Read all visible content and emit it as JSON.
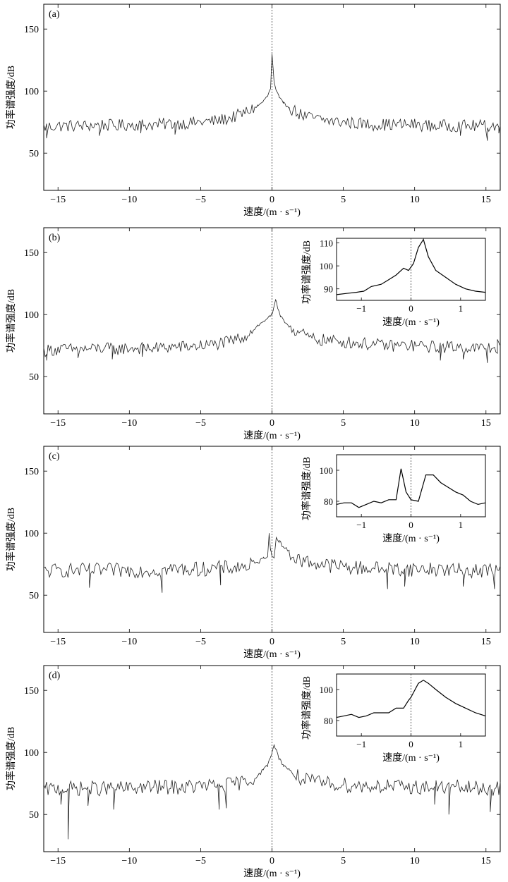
{
  "chart_data": [
    {
      "type": "line",
      "panel_label": "(a)",
      "xlabel": "速度/(m · s⁻¹)",
      "ylabel": "功率谱强度/dB",
      "xlim": [
        -16,
        16
      ],
      "ylim": [
        20,
        170
      ],
      "x_ticks": [
        -15,
        -10,
        -5,
        0,
        5,
        10,
        15
      ],
      "y_ticks": [
        50,
        100,
        150
      ],
      "x_tick_labels": [
        "−15",
        "−10",
        "−5",
        "0",
        "5",
        "10",
        "15"
      ],
      "y_tick_labels": [
        "50",
        "100",
        "150"
      ],
      "zero_line": true,
      "grid": false,
      "series": [
        {
          "x": [
            -16,
            -15,
            -14,
            -13,
            -12,
            -11,
            -10,
            -9,
            -8,
            -7,
            -6,
            -5,
            -4,
            -3,
            -2.5,
            -2,
            -1.5,
            -1,
            -0.6,
            -0.3,
            -0.1,
            0,
            0.15,
            0.3,
            0.5,
            0.8,
            1.2,
            1.6,
            2,
            2.5,
            3,
            4,
            5,
            6,
            7,
            8,
            9,
            10,
            11,
            12,
            13,
            14,
            15,
            16
          ],
          "y": [
            71,
            72,
            72,
            72,
            73,
            72,
            73,
            73,
            73,
            74,
            74,
            75,
            76,
            78,
            80,
            82,
            85,
            88,
            92,
            96,
            102,
            130,
            107,
            100,
            95,
            90,
            87,
            84,
            81,
            79,
            78,
            76,
            75,
            74,
            73,
            73,
            73,
            73,
            72,
            72,
            72,
            72,
            72,
            72
          ],
          "noise": 5,
          "dips": [
            [
              -15.8,
              62
            ],
            [
              -12.1,
              64
            ],
            [
              -9.2,
              66
            ],
            [
              -6.8,
              65
            ],
            [
              13.2,
              64
            ],
            [
              15.1,
              60
            ],
            [
              15.9,
              66
            ]
          ]
        }
      ]
    },
    {
      "type": "line",
      "panel_label": "(b)",
      "xlabel": "速度/(m · s⁻¹)",
      "ylabel": "功率谱强度/dB",
      "xlim": [
        -16,
        16
      ],
      "ylim": [
        20,
        170
      ],
      "x_ticks": [
        -15,
        -10,
        -5,
        0,
        5,
        10,
        15
      ],
      "y_ticks": [
        50,
        100,
        150
      ],
      "x_tick_labels": [
        "−15",
        "−10",
        "−5",
        "0",
        "5",
        "10",
        "15"
      ],
      "y_tick_labels": [
        "50",
        "100",
        "150"
      ],
      "zero_line": true,
      "grid": false,
      "series": [
        {
          "x": [
            -16,
            -15,
            -14,
            -13,
            -12,
            -11,
            -10,
            -9,
            -8,
            -7,
            -6,
            -5,
            -4,
            -3,
            -2,
            -1.5,
            -1,
            -0.5,
            -0.2,
            0,
            0.1,
            0.25,
            0.4,
            0.6,
            1,
            1.5,
            2,
            2.5,
            3,
            4,
            5,
            6,
            7,
            8,
            9,
            10,
            11,
            12,
            13,
            14,
            15,
            16
          ],
          "y": [
            71,
            72,
            72,
            72,
            73,
            72,
            73,
            73,
            73,
            74,
            74,
            75,
            76,
            78,
            82,
            86,
            91,
            95,
            99,
            100,
            104,
            112,
            105,
            98,
            93,
            88,
            85,
            82,
            80,
            79,
            78,
            77,
            76,
            75,
            75,
            75,
            74,
            74,
            74,
            73,
            73,
            73
          ],
          "noise": 5,
          "dips": [
            [
              -15.8,
              63
            ],
            [
              -13.6,
              65
            ],
            [
              -11.2,
              64
            ],
            [
              -9.1,
              66
            ],
            [
              11.8,
              63
            ],
            [
              13.4,
              64
            ],
            [
              15.1,
              61
            ],
            [
              15.8,
              80
            ]
          ]
        }
      ],
      "inset": {
        "xlabel": "速度/(m · s⁻¹)",
        "ylabel": "功率谱强度/dB",
        "xlim": [
          -1.5,
          1.5
        ],
        "ylim": [
          85,
          112
        ],
        "x_ticks": [
          -1,
          0,
          1
        ],
        "y_ticks": [
          90,
          100,
          110
        ],
        "x_tick_labels": [
          "−1",
          "0",
          "1"
        ],
        "y_tick_labels": [
          "90",
          "100",
          "110"
        ],
        "series": [
          {
            "x": [
              -1.5,
              -1.3,
              -1.1,
              -0.95,
              -0.8,
              -0.6,
              -0.45,
              -0.3,
              -0.15,
              -0.05,
              0.05,
              0.15,
              0.25,
              0.35,
              0.5,
              0.7,
              0.9,
              1.1,
              1.3,
              1.5
            ],
            "y": [
              87.5,
              88,
              88.5,
              89,
              91,
              92,
              94,
              96,
              99,
              98,
              101,
              108,
              111.5,
              104,
              98,
              95,
              92,
              90,
              89,
              88.5
            ]
          }
        ]
      }
    },
    {
      "type": "line",
      "panel_label": "(c)",
      "xlabel": "速度/(m · s⁻¹)",
      "ylabel": "功率谱强度/dB",
      "xlim": [
        -16,
        16
      ],
      "ylim": [
        20,
        170
      ],
      "x_ticks": [
        -15,
        -10,
        -5,
        0,
        5,
        10,
        15
      ],
      "y_ticks": [
        50,
        100,
        150
      ],
      "x_tick_labels": [
        "−15",
        "−10",
        "−5",
        "0",
        "5",
        "10",
        "15"
      ],
      "y_tick_labels": [
        "50",
        "100",
        "150"
      ],
      "zero_line": true,
      "grid": false,
      "series": [
        {
          "x": [
            -16,
            -15,
            -14,
            -13,
            -12,
            -11,
            -10,
            -9,
            -8,
            -7,
            -6,
            -5,
            -4,
            -3,
            -2,
            -1.5,
            -1,
            -0.6,
            -0.3,
            -0.2,
            -0.1,
            0,
            0.15,
            0.3,
            0.5,
            0.8,
            1.2,
            1.6,
            2,
            3,
            4,
            5,
            6,
            7,
            8,
            9,
            10,
            11,
            12,
            13,
            14,
            15,
            16
          ],
          "y": [
            69,
            70,
            70,
            70,
            70,
            70,
            70,
            70,
            70,
            71,
            71,
            71,
            72,
            72,
            73,
            74,
            76,
            80,
            82,
            100,
            86,
            81,
            80,
            97,
            94,
            89,
            85,
            80,
            78,
            76,
            74,
            73,
            72,
            72,
            71,
            71,
            71,
            71,
            71,
            70,
            70,
            70,
            70
          ],
          "noise": 6,
          "dips": [
            [
              -12.8,
              56
            ],
            [
              -7.7,
              52
            ],
            [
              -3.6,
              58
            ],
            [
              8.1,
              55
            ],
            [
              9.3,
              57
            ],
            [
              13.4,
              57
            ],
            [
              15.6,
              55
            ]
          ]
        }
      ],
      "inset": {
        "xlabel": "速度/(m · s⁻¹)",
        "ylabel": "功率谱强度/dB",
        "xlim": [
          -1.5,
          1.5
        ],
        "ylim": [
          70,
          110
        ],
        "x_ticks": [
          -1,
          0,
          1
        ],
        "y_ticks": [
          80,
          100
        ],
        "x_tick_labels": [
          "−1",
          "0",
          "1"
        ],
        "y_tick_labels": [
          "80",
          "100"
        ],
        "series": [
          {
            "x": [
              -1.5,
              -1.35,
              -1.2,
              -1.05,
              -0.9,
              -0.75,
              -0.6,
              -0.45,
              -0.3,
              -0.2,
              -0.1,
              0,
              0.15,
              0.3,
              0.45,
              0.6,
              0.75,
              0.9,
              1.05,
              1.2,
              1.35,
              1.5
            ],
            "y": [
              78,
              79,
              79,
              76,
              78,
              80,
              79,
              81,
              81,
              101,
              86,
              81,
              80,
              97,
              97,
              92,
              89,
              86,
              84,
              80,
              78,
              79
            ]
          }
        ]
      }
    },
    {
      "type": "line",
      "panel_label": "(d)",
      "xlabel": "速度/(m · s⁻¹)",
      "ylabel": "功率谱强度/dB",
      "xlim": [
        -16,
        16
      ],
      "ylim": [
        20,
        170
      ],
      "x_ticks": [
        -15,
        -10,
        -5,
        0,
        5,
        10,
        15
      ],
      "y_ticks": [
        50,
        100,
        150
      ],
      "x_tick_labels": [
        "−15",
        "−10",
        "−5",
        "0",
        "5",
        "10",
        "15"
      ],
      "y_tick_labels": [
        "50",
        "100",
        "150"
      ],
      "zero_line": true,
      "grid": false,
      "series": [
        {
          "x": [
            -16,
            -15,
            -14,
            -13,
            -12,
            -11,
            -10,
            -9,
            -8,
            -7,
            -6,
            -5,
            -4,
            -3,
            -2,
            -1.5,
            -1,
            -0.6,
            -0.3,
            -0.1,
            0,
            0.15,
            0.3,
            0.5,
            0.8,
            1.2,
            1.6,
            2,
            2.5,
            3,
            4,
            5,
            6,
            7,
            8,
            9,
            10,
            11,
            12,
            13,
            14,
            15,
            16
          ],
          "y": [
            70,
            71,
            71,
            71,
            71,
            71,
            71,
            72,
            72,
            72,
            72,
            73,
            73,
            74,
            76,
            78,
            81,
            86,
            90,
            96,
            100,
            106,
            102,
            95,
            90,
            86,
            82,
            79,
            77,
            76,
            75,
            74,
            73,
            73,
            73,
            72,
            72,
            72,
            72,
            72,
            71,
            71,
            71
          ],
          "noise": 6,
          "dips": [
            [
              -14.3,
              30
            ],
            [
              -14.8,
              58
            ],
            [
              -12.9,
              57
            ],
            [
              -11.1,
              54
            ],
            [
              -3.7,
              54
            ],
            [
              -3.2,
              55
            ],
            [
              11.4,
              58
            ],
            [
              12.4,
              50
            ],
            [
              15.3,
              52
            ]
          ]
        }
      ],
      "inset": {
        "xlabel": "速度/(m · s⁻¹)",
        "ylabel": "功率谱强度/dB",
        "xlim": [
          -1.5,
          1.5
        ],
        "ylim": [
          70,
          110
        ],
        "x_ticks": [
          -1,
          0,
          1
        ],
        "y_ticks": [
          80,
          100
        ],
        "x_tick_labels": [
          "−1",
          "0",
          "1"
        ],
        "y_tick_labels": [
          "80",
          "100"
        ],
        "series": [
          {
            "x": [
              -1.5,
              -1.35,
              -1.2,
              -1.05,
              -0.9,
              -0.75,
              -0.6,
              -0.45,
              -0.3,
              -0.15,
              -0.05,
              0,
              0.05,
              0.15,
              0.25,
              0.35,
              0.5,
              0.7,
              0.9,
              1.1,
              1.3,
              1.5
            ],
            "y": [
              82,
              83,
              84,
              82,
              83,
              85,
              85,
              85,
              88,
              88,
              93,
              95,
              98,
              104,
              106,
              104,
              100,
              95,
              91,
              88,
              85,
              83
            ]
          }
        ]
      }
    }
  ]
}
